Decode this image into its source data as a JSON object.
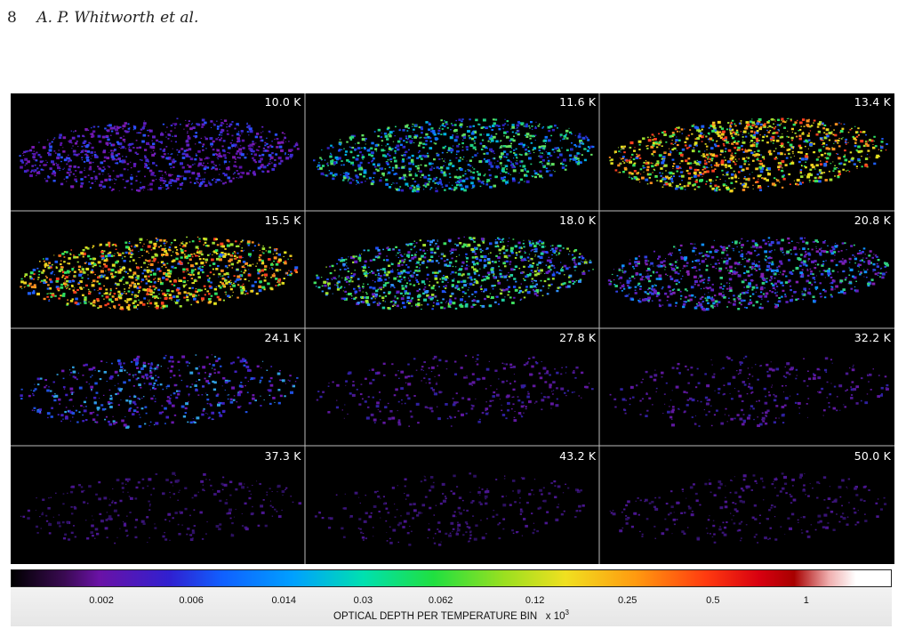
{
  "header": {
    "page_number": "8",
    "authors": "A. P. Whitworth et al."
  },
  "panels": [
    {
      "label": "10.0 K",
      "mode": "cool"
    },
    {
      "label": "11.6 K",
      "mode": "blue"
    },
    {
      "label": "13.4 K",
      "mode": "warm"
    },
    {
      "label": "15.5 K",
      "mode": "warm"
    },
    {
      "label": "18.0 K",
      "mode": "mid"
    },
    {
      "label": "20.8 K",
      "mode": "mid2"
    },
    {
      "label": "24.1 K",
      "mode": "faint"
    },
    {
      "label": "27.8 K",
      "mode": "fainter"
    },
    {
      "label": "32.2 K",
      "mode": "fainter"
    },
    {
      "label": "37.3 K",
      "mode": "faintest"
    },
    {
      "label": "43.2 K",
      "mode": "faintest"
    },
    {
      "label": "50.0 K",
      "mode": "faintest"
    }
  ],
  "colorbar": {
    "ticks": [
      "0.002",
      "0.006",
      "0.014",
      "0.03",
      "0.062",
      "0.12",
      "0.25",
      "0.5",
      "1"
    ],
    "caption": "OPTICAL DEPTH PER TEMPERATURE BIN",
    "multiplier_text": "x 10",
    "multiplier_exp": "3"
  }
}
